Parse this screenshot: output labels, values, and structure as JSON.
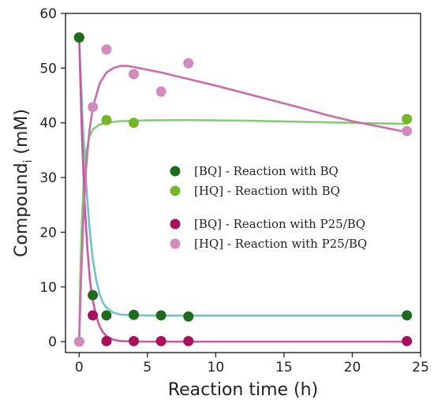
{
  "chart_data": {
    "type": "scatter",
    "title": "",
    "xlabel": "Reaction time (h)",
    "ylabel_main": "Compound",
    "ylabel_sub": "i",
    "ylabel_unit": " (mM)",
    "xlim": [
      -1,
      25
    ],
    "ylim": [
      -2,
      60
    ],
    "xticks": [
      0,
      5,
      10,
      15,
      20,
      25
    ],
    "yticks": [
      0,
      10,
      20,
      30,
      40,
      50,
      60
    ],
    "grid": false,
    "legend_position": "center-right",
    "series": [
      {
        "name": "[BQ] - Reaction with BQ",
        "color": "#1e6b1e",
        "fit_color": "#6ec3c3",
        "points": [
          [
            0,
            55.6
          ],
          [
            1,
            8.5
          ],
          [
            2,
            4.8
          ],
          [
            4,
            4.9
          ],
          [
            6,
            4.8
          ],
          [
            8,
            4.6
          ],
          [
            24,
            4.8
          ]
        ],
        "fit": [
          [
            0,
            55.6
          ],
          [
            0.25,
            40.6
          ],
          [
            0.5,
            29.3
          ],
          [
            0.75,
            21.0
          ],
          [
            1,
            15.0
          ],
          [
            1.25,
            11.3
          ],
          [
            1.5,
            8.6
          ],
          [
            1.75,
            7.1
          ],
          [
            2,
            6.2
          ],
          [
            2.5,
            5.3
          ],
          [
            3,
            4.95
          ],
          [
            4,
            4.8
          ],
          [
            6,
            4.75
          ],
          [
            10,
            4.75
          ],
          [
            16,
            4.75
          ],
          [
            24,
            4.75
          ]
        ]
      },
      {
        "name": "[HQ] - Reaction with BQ",
        "color": "#77b52a",
        "fit_color": "#86cc78",
        "points": [
          [
            0,
            0
          ],
          [
            2,
            40.5
          ],
          [
            4,
            40.0
          ],
          [
            24,
            40.7
          ]
        ],
        "fit": [
          [
            0,
            0
          ],
          [
            0.1,
            14.0
          ],
          [
            0.2,
            22.0
          ],
          [
            0.35,
            30.0
          ],
          [
            0.5,
            34.5
          ],
          [
            0.75,
            37.5
          ],
          [
            1,
            38.8
          ],
          [
            1.5,
            39.7
          ],
          [
            2,
            40.0
          ],
          [
            3,
            40.3
          ],
          [
            5,
            40.45
          ],
          [
            8,
            40.5
          ],
          [
            12,
            40.4
          ],
          [
            16,
            40.2
          ],
          [
            20,
            40.0
          ],
          [
            24,
            39.8
          ]
        ]
      },
      {
        "name": "[BQ] - Reaction with P25/BQ",
        "color": "#a8105e",
        "fit_color": "#c45aa0",
        "points": [
          [
            0,
            55.6
          ],
          [
            1,
            4.8
          ],
          [
            2,
            0.1
          ],
          [
            4,
            0.1
          ],
          [
            6,
            0.1
          ],
          [
            8,
            0.1
          ],
          [
            24,
            0.1
          ]
        ],
        "fit": [
          [
            0,
            55.6
          ],
          [
            0.2,
            38.0
          ],
          [
            0.4,
            25.5
          ],
          [
            0.6,
            17.0
          ],
          [
            0.8,
            11.0
          ],
          [
            1,
            7.5
          ],
          [
            1.25,
            4.6
          ],
          [
            1.5,
            2.8
          ],
          [
            1.75,
            1.7
          ],
          [
            2,
            1.0
          ],
          [
            2.5,
            0.35
          ],
          [
            3,
            0.12
          ],
          [
            4,
            0.02
          ],
          [
            6,
            0
          ],
          [
            10,
            0
          ],
          [
            24,
            0
          ]
        ]
      },
      {
        "name": "[HQ] - Reaction with P25/BQ",
        "color": "#d38cb9",
        "fit_color": "#c96ea8",
        "points": [
          [
            0,
            0
          ],
          [
            1,
            42.9
          ],
          [
            2,
            53.4
          ],
          [
            4,
            48.9
          ],
          [
            6,
            45.7
          ],
          [
            8,
            50.9
          ],
          [
            24,
            38.5
          ]
        ],
        "fit": [
          [
            0,
            0
          ],
          [
            0.15,
            12.0
          ],
          [
            0.3,
            22.0
          ],
          [
            0.5,
            31.5
          ],
          [
            0.75,
            38.5
          ],
          [
            1,
            42.8
          ],
          [
            1.5,
            47.2
          ],
          [
            2,
            49.2
          ],
          [
            2.5,
            50.0
          ],
          [
            3,
            50.4
          ],
          [
            3.5,
            50.4
          ],
          [
            4,
            50.2
          ],
          [
            5,
            49.7
          ],
          [
            6,
            49.2
          ],
          [
            8,
            48.0
          ],
          [
            10,
            46.8
          ],
          [
            12,
            45.5
          ],
          [
            14,
            44.2
          ],
          [
            16,
            42.9
          ],
          [
            18,
            41.5
          ],
          [
            20,
            40.3
          ],
          [
            22,
            39.3
          ],
          [
            24,
            38.3
          ]
        ]
      }
    ]
  }
}
